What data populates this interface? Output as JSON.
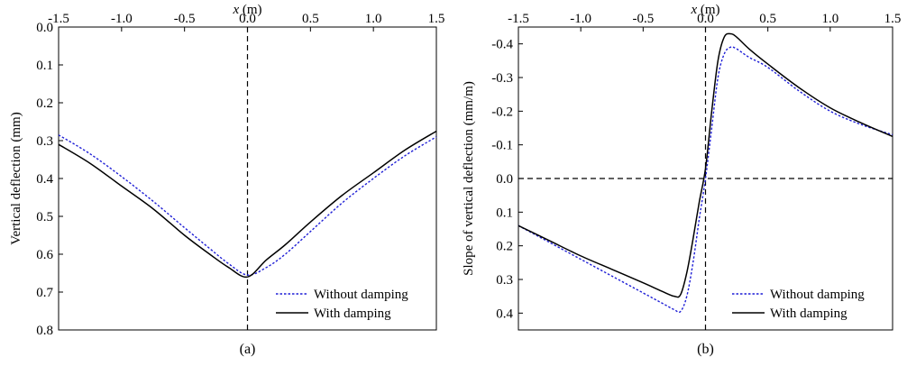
{
  "chart_data": [
    {
      "type": "line",
      "panel_label": "(a)",
      "xlabel_var": "x",
      "xlabel_unit": " (m)",
      "ylabel": "Vertical deflection (mm)",
      "xlim": [
        -1.5,
        1.5
      ],
      "ylim": [
        0.8,
        0.0
      ],
      "y_inverted": true,
      "x_axis_position": "top",
      "x_ticks": [
        -1.5,
        -1.0,
        -0.5,
        0.0,
        0.5,
        1.0,
        1.5
      ],
      "x_tick_labels": [
        "-1.5",
        "-1.0",
        "-0.5",
        "0.0",
        "0.5",
        "1.0",
        "1.5"
      ],
      "y_ticks": [
        0.0,
        0.1,
        0.2,
        0.3,
        0.4,
        0.5,
        0.6,
        0.7,
        0.8
      ],
      "y_tick_labels": [
        "0.0",
        "0.1",
        "0.2",
        "0.3",
        "0.4",
        "0.5",
        "0.6",
        "0.7",
        "0.8"
      ],
      "reference_lines": [
        {
          "orientation": "vertical",
          "value": 0.0,
          "style": "dashed"
        }
      ],
      "legend_position": "bottom-right",
      "series": [
        {
          "name": "Without damping",
          "color": "#1f1fd6",
          "style": "dotted",
          "x": [
            -1.5,
            -1.25,
            -1.0,
            -0.75,
            -0.5,
            -0.3,
            -0.15,
            0.0,
            0.15,
            0.3,
            0.5,
            0.75,
            1.0,
            1.25,
            1.5
          ],
          "y": [
            0.285,
            0.335,
            0.395,
            0.46,
            0.53,
            0.585,
            0.625,
            0.655,
            0.635,
            0.6,
            0.54,
            0.465,
            0.4,
            0.34,
            0.29
          ]
        },
        {
          "name": "With damping",
          "color": "#000000",
          "style": "solid",
          "x": [
            -1.5,
            -1.25,
            -1.0,
            -0.75,
            -0.5,
            -0.3,
            -0.15,
            0.0,
            0.15,
            0.3,
            0.5,
            0.75,
            1.0,
            1.25,
            1.5
          ],
          "y": [
            0.31,
            0.36,
            0.42,
            0.48,
            0.55,
            0.6,
            0.635,
            0.66,
            0.615,
            0.575,
            0.515,
            0.445,
            0.385,
            0.325,
            0.275
          ]
        }
      ]
    },
    {
      "type": "line",
      "panel_label": "(b)",
      "xlabel_var": "x",
      "xlabel_unit": " (m)",
      "ylabel": "Slope of vertical deflection (mm/m)",
      "xlim": [
        -1.5,
        1.5
      ],
      "ylim": [
        0.45,
        -0.45
      ],
      "y_inverted": true,
      "x_axis_position": "top",
      "x_ticks": [
        -1.5,
        -1.0,
        -0.5,
        0.0,
        0.5,
        1.0,
        1.5
      ],
      "x_tick_labels": [
        "-1.5",
        "-1.0",
        "-0.5",
        "0.0",
        "0.5",
        "1.0",
        "1.5"
      ],
      "y_ticks": [
        -0.4,
        -0.3,
        -0.2,
        -0.1,
        0.0,
        0.1,
        0.2,
        0.3,
        0.4
      ],
      "y_tick_labels": [
        "-0.4",
        "-0.3",
        "-0.2",
        "-0.1",
        "0.0",
        "0.1",
        "0.2",
        "0.3",
        "0.4"
      ],
      "reference_lines": [
        {
          "orientation": "vertical",
          "value": 0.0,
          "style": "dashed"
        },
        {
          "orientation": "horizontal",
          "value": 0.0,
          "style": "dashed"
        }
      ],
      "legend_position": "bottom-right",
      "series": [
        {
          "name": "Without damping",
          "color": "#1f1fd6",
          "style": "dotted",
          "x": [
            -1.5,
            -1.25,
            -1.0,
            -0.75,
            -0.5,
            -0.35,
            -0.25,
            -0.2,
            -0.15,
            -0.1,
            -0.05,
            0.0,
            0.05,
            0.1,
            0.15,
            0.2,
            0.25,
            0.35,
            0.5,
            0.75,
            1.0,
            1.25,
            1.5
          ],
          "y": [
            0.14,
            0.19,
            0.24,
            0.29,
            0.34,
            0.37,
            0.39,
            0.395,
            0.35,
            0.25,
            0.12,
            0.0,
            -0.15,
            -0.3,
            -0.37,
            -0.39,
            -0.385,
            -0.36,
            -0.33,
            -0.26,
            -0.2,
            -0.16,
            -0.13
          ]
        },
        {
          "name": "With damping",
          "color": "#000000",
          "style": "solid",
          "x": [
            -1.5,
            -1.25,
            -1.0,
            -0.75,
            -0.5,
            -0.35,
            -0.25,
            -0.2,
            -0.15,
            -0.1,
            -0.05,
            0.0,
            0.05,
            0.1,
            0.15,
            0.2,
            0.25,
            0.35,
            0.5,
            0.75,
            1.0,
            1.25,
            1.5
          ],
          "y": [
            0.14,
            0.185,
            0.23,
            0.27,
            0.31,
            0.335,
            0.35,
            0.345,
            0.28,
            0.18,
            0.07,
            -0.03,
            -0.2,
            -0.35,
            -0.42,
            -0.43,
            -0.42,
            -0.385,
            -0.34,
            -0.27,
            -0.21,
            -0.165,
            -0.125
          ]
        }
      ]
    }
  ]
}
